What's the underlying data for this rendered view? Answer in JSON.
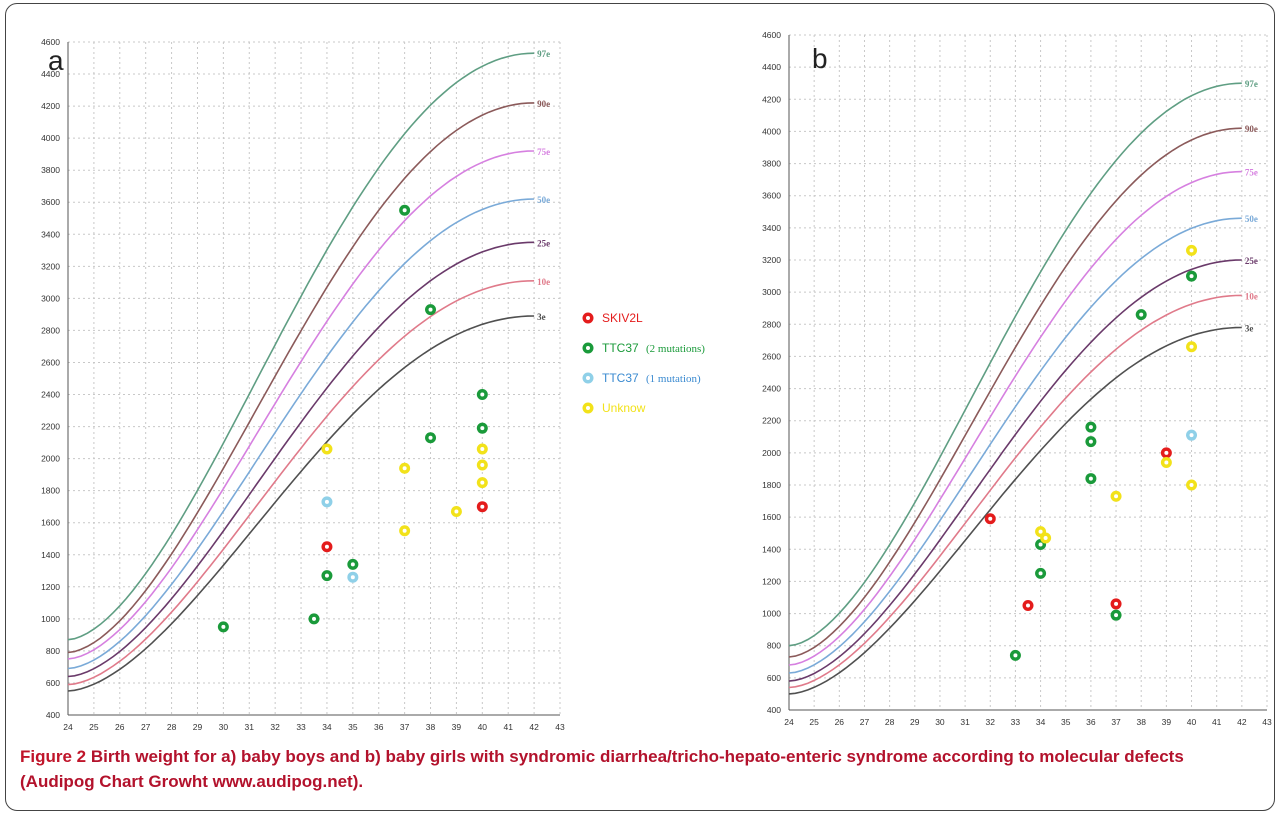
{
  "colors": {
    "97e": "#5f9e83",
    "90e": "#8b5a5a",
    "75e": "#d680e0",
    "50e": "#7aaad8",
    "25e": "#6a3a6a",
    "10e": "#e07a8a",
    "3e": "#505050",
    "SKIV2L": "#e41c1c",
    "TTC37_2": "#1a9a3a",
    "TTC37_1": "#8fd0e8",
    "Unknow": "#f2e21a"
  },
  "legend": {
    "items": [
      {
        "key": "SKIV2L",
        "label": "SKIV2L",
        "note": "",
        "text_color": "#e41c1c"
      },
      {
        "key": "TTC37_2",
        "label": "TTC37",
        "note": "(2 mutations)",
        "text_color": "#1a9a3a"
      },
      {
        "key": "TTC37_1",
        "label": "TTC37",
        "note": "(1 mutation)",
        "text_color": "#3a8ad0"
      },
      {
        "key": "Unknow",
        "label": "Unknow",
        "note": "",
        "text_color": "#f2e21a"
      }
    ]
  },
  "chart_data": [
    {
      "panel_label": "a",
      "type": "scatter",
      "xlim": [
        24,
        43
      ],
      "ylim": [
        400,
        4600
      ],
      "grid": true,
      "xticks": [
        24,
        25,
        26,
        27,
        28,
        29,
        30,
        31,
        32,
        33,
        34,
        35,
        36,
        37,
        38,
        39,
        40,
        41,
        42,
        43
      ],
      "yticks": [
        400,
        600,
        800,
        1000,
        1200,
        1400,
        1600,
        1800,
        2000,
        2200,
        2400,
        2600,
        2800,
        3000,
        3200,
        3400,
        3600,
        3800,
        4000,
        4200,
        4400,
        4600
      ],
      "curves": [
        {
          "name": "97e",
          "low": 870,
          "high": 4530
        },
        {
          "name": "90e",
          "low": 790,
          "high": 4220
        },
        {
          "name": "75e",
          "low": 750,
          "high": 3920
        },
        {
          "name": "50e",
          "low": 690,
          "high": 3620
        },
        {
          "name": "25e",
          "low": 640,
          "high": 3350
        },
        {
          "name": "10e",
          "low": 590,
          "high": 3110
        },
        {
          "name": "3e",
          "low": 550,
          "high": 2890
        }
      ],
      "points": [
        {
          "x": 30,
          "y": 950,
          "group": "TTC37_2"
        },
        {
          "x": 33.5,
          "y": 1000,
          "group": "TTC37_2"
        },
        {
          "x": 34,
          "y": 1270,
          "group": "TTC37_2"
        },
        {
          "x": 35,
          "y": 1340,
          "group": "TTC37_2"
        },
        {
          "x": 37,
          "y": 3550,
          "group": "TTC37_2"
        },
        {
          "x": 38,
          "y": 2930,
          "group": "TTC37_2"
        },
        {
          "x": 38,
          "y": 2130,
          "group": "TTC37_2"
        },
        {
          "x": 40,
          "y": 2400,
          "group": "TTC37_2"
        },
        {
          "x": 40,
          "y": 2190,
          "group": "TTC37_2"
        },
        {
          "x": 34,
          "y": 1450,
          "group": "SKIV2L"
        },
        {
          "x": 40,
          "y": 1700,
          "group": "SKIV2L"
        },
        {
          "x": 34,
          "y": 1730,
          "group": "TTC37_1"
        },
        {
          "x": 35,
          "y": 1260,
          "group": "TTC37_1"
        },
        {
          "x": 34,
          "y": 2060,
          "group": "Unknow"
        },
        {
          "x": 37,
          "y": 1940,
          "group": "Unknow"
        },
        {
          "x": 37,
          "y": 1550,
          "group": "Unknow"
        },
        {
          "x": 39,
          "y": 1670,
          "group": "Unknow"
        },
        {
          "x": 40,
          "y": 2060,
          "group": "Unknow"
        },
        {
          "x": 40,
          "y": 1960,
          "group": "Unknow"
        },
        {
          "x": 40,
          "y": 1850,
          "group": "Unknow"
        }
      ]
    },
    {
      "panel_label": "b",
      "type": "scatter",
      "xlim": [
        24,
        43
      ],
      "ylim": [
        400,
        4600
      ],
      "grid": true,
      "xticks": [
        24,
        25,
        26,
        27,
        28,
        29,
        30,
        31,
        32,
        33,
        34,
        35,
        36,
        37,
        38,
        39,
        40,
        41,
        42,
        43
      ],
      "yticks": [
        400,
        600,
        800,
        1000,
        1200,
        1400,
        1600,
        1800,
        2000,
        2200,
        2400,
        2600,
        2800,
        3000,
        3200,
        3400,
        3600,
        3800,
        4000,
        4200,
        4400,
        4600
      ],
      "curves": [
        {
          "name": "97e",
          "low": 800,
          "high": 4300
        },
        {
          "name": "90e",
          "low": 730,
          "high": 4020
        },
        {
          "name": "75e",
          "low": 680,
          "high": 3750
        },
        {
          "name": "50e",
          "low": 630,
          "high": 3460
        },
        {
          "name": "25e",
          "low": 580,
          "high": 3200
        },
        {
          "name": "10e",
          "low": 540,
          "high": 2980
        },
        {
          "name": "3e",
          "low": 500,
          "high": 2780
        }
      ],
      "points": [
        {
          "x": 32,
          "y": 1590,
          "group": "SKIV2L"
        },
        {
          "x": 33.5,
          "y": 1050,
          "group": "SKIV2L"
        },
        {
          "x": 37,
          "y": 1060,
          "group": "SKIV2L"
        },
        {
          "x": 39,
          "y": 2000,
          "group": "SKIV2L"
        },
        {
          "x": 33,
          "y": 740,
          "group": "TTC37_2"
        },
        {
          "x": 34,
          "y": 1430,
          "group": "TTC37_2"
        },
        {
          "x": 34,
          "y": 1250,
          "group": "TTC37_2"
        },
        {
          "x": 36,
          "y": 2160,
          "group": "TTC37_2"
        },
        {
          "x": 36,
          "y": 2070,
          "group": "TTC37_2"
        },
        {
          "x": 36,
          "y": 1840,
          "group": "TTC37_2"
        },
        {
          "x": 37,
          "y": 990,
          "group": "TTC37_2"
        },
        {
          "x": 38,
          "y": 2860,
          "group": "TTC37_2"
        },
        {
          "x": 40,
          "y": 3100,
          "group": "TTC37_2"
        },
        {
          "x": 40,
          "y": 2110,
          "group": "TTC37_1"
        },
        {
          "x": 34,
          "y": 1510,
          "group": "Unknow"
        },
        {
          "x": 34.2,
          "y": 1470,
          "group": "Unknow"
        },
        {
          "x": 37,
          "y": 1730,
          "group": "Unknow"
        },
        {
          "x": 39,
          "y": 1940,
          "group": "Unknow"
        },
        {
          "x": 40,
          "y": 3260,
          "group": "Unknow"
        },
        {
          "x": 40,
          "y": 2660,
          "group": "Unknow"
        },
        {
          "x": 40,
          "y": 1800,
          "group": "Unknow"
        }
      ]
    }
  ],
  "caption": {
    "lead": "Figure 2",
    "text": " Birth weight for a) baby boys and b) baby girls with syndromic diarrhea/tricho-hepato-enteric syndrome according to molecular defects (Audipog Chart Growht www.audipog.net)."
  }
}
